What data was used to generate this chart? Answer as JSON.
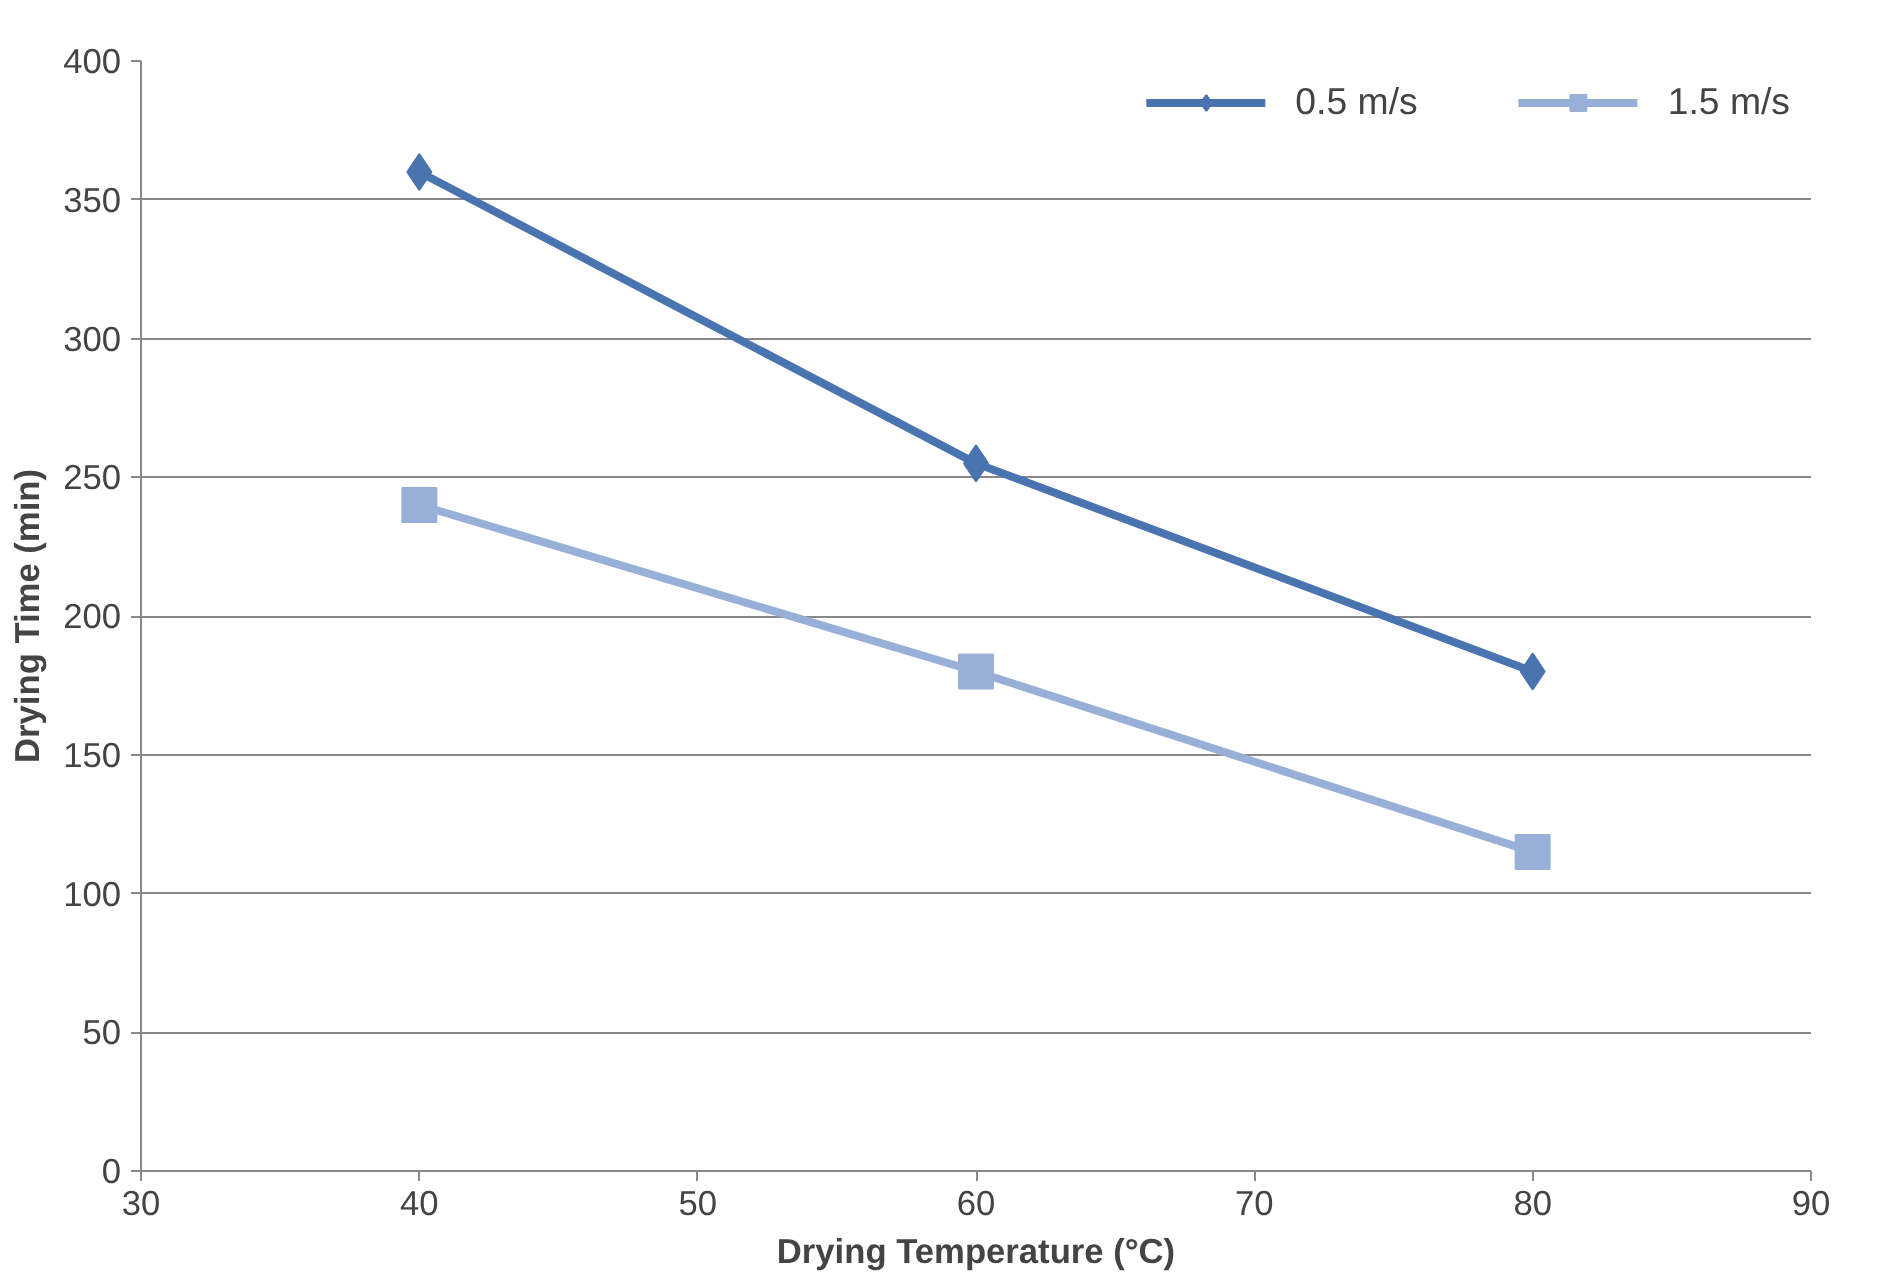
{
  "chart_data": {
    "type": "line",
    "xlabel": "Drying Temperature (°C)",
    "ylabel": "Drying Time (min)",
    "x": [
      40,
      60,
      80
    ],
    "series": [
      {
        "name": "0.5 m/s",
        "color": "#4a74b0",
        "marker": "diamond",
        "values": [
          360,
          255,
          180
        ]
      },
      {
        "name": "1.5 m/s",
        "color": "#98b0d8",
        "marker": "square",
        "values": [
          240,
          180,
          115
        ]
      }
    ],
    "xlim": [
      30,
      90
    ],
    "xticks": [
      30,
      40,
      50,
      60,
      70,
      80,
      90
    ],
    "ylim": [
      0,
      400
    ],
    "yticks": [
      0,
      50,
      100,
      150,
      200,
      250,
      300,
      350,
      400
    ],
    "grid": "y",
    "legend": "top",
    "line_style": "solid"
  }
}
